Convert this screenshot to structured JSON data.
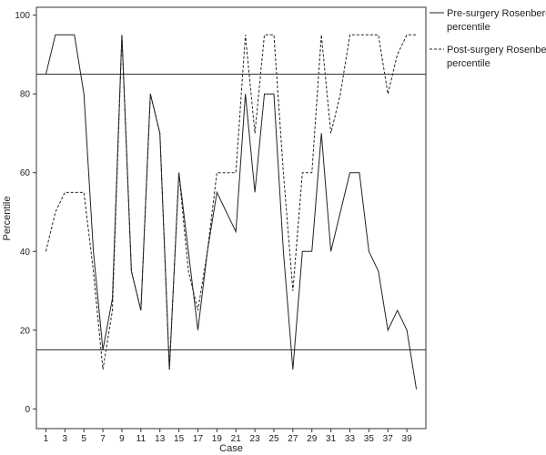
{
  "chart_data": {
    "type": "line",
    "xlabel": "Case",
    "ylabel": "Percentile",
    "ylim": [
      -5,
      102
    ],
    "xlim": [
      0,
      41
    ],
    "x_ticks": [
      1,
      3,
      5,
      7,
      9,
      11,
      13,
      15,
      17,
      19,
      21,
      23,
      25,
      27,
      29,
      31,
      33,
      35,
      37,
      39
    ],
    "y_ticks": [
      0,
      20,
      40,
      60,
      80,
      100
    ],
    "grid": false,
    "legend_position": "top-right-outside",
    "reference_lines": [
      85,
      15
    ],
    "x": [
      1,
      2,
      3,
      4,
      5,
      6,
      7,
      8,
      9,
      10,
      11,
      12,
      13,
      14,
      15,
      16,
      17,
      18,
      19,
      20,
      21,
      22,
      23,
      24,
      25,
      26,
      27,
      28,
      29,
      30,
      31,
      32,
      33,
      34,
      35,
      36,
      37,
      38,
      39,
      40
    ],
    "series": [
      {
        "name": "Pre-surgery Rosenberg percentile",
        "line_style": "solid",
        "values": [
          85,
          95,
          95,
          95,
          80,
          40,
          15,
          28,
          95,
          35,
          25,
          80,
          70,
          10,
          60,
          40,
          20,
          40,
          55,
          50,
          45,
          80,
          55,
          80,
          80,
          40,
          10,
          40,
          40,
          70,
          40,
          50,
          60,
          60,
          40,
          35,
          20,
          25,
          20,
          5
        ]
      },
      {
        "name": "Post-surgery Rosenberg percentile",
        "line_style": "dashed",
        "values": [
          40,
          50,
          55,
          55,
          55,
          35,
          10,
          25,
          95,
          35,
          25,
          80,
          70,
          10,
          60,
          35,
          25,
          40,
          60,
          60,
          60,
          95,
          70,
          95,
          95,
          60,
          30,
          60,
          60,
          95,
          70,
          80,
          95,
          95,
          95,
          95,
          80,
          90,
          95,
          95
        ]
      }
    ]
  }
}
